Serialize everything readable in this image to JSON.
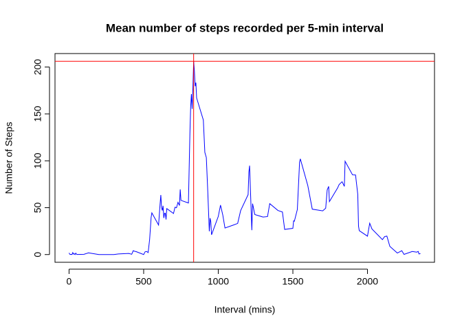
{
  "chart_data": {
    "type": "line",
    "title": "Mean number of steps recorded per 5-min interval",
    "x_label": "Interval (mins)",
    "y_label": "Number of Steps",
    "x": [
      0,
      5,
      10,
      15,
      20,
      25,
      30,
      35,
      40,
      45,
      50,
      55,
      100,
      130,
      200,
      230,
      300,
      330,
      400,
      420,
      430,
      440,
      450,
      500,
      505,
      510,
      520,
      530,
      540,
      550,
      555,
      600,
      610,
      615,
      620,
      625,
      630,
      635,
      640,
      645,
      650,
      655,
      700,
      710,
      720,
      730,
      740,
      745,
      750,
      800,
      810,
      815,
      820,
      825,
      830,
      835,
      840,
      845,
      850,
      855,
      900,
      910,
      920,
      930,
      940,
      945,
      950,
      955,
      1000,
      1015,
      1030,
      1045,
      1100,
      1130,
      1150,
      1200,
      1205,
      1210,
      1225,
      1230,
      1245,
      1300,
      1330,
      1345,
      1400,
      1430,
      1445,
      1500,
      1505,
      1510,
      1530,
      1545,
      1550,
      1600,
      1630,
      1700,
      1720,
      1730,
      1740,
      1745,
      1800,
      1810,
      1830,
      1845,
      1850,
      1900,
      1920,
      1935,
      1940,
      1945,
      2000,
      2015,
      2030,
      2100,
      2115,
      2130,
      2150,
      2200,
      2230,
      2245,
      2300,
      2330,
      2340,
      2345,
      2355
    ],
    "values": [
      1.7,
      0.3,
      0.1,
      0.2,
      0.1,
      2.1,
      0.5,
      0.9,
      0,
      1.5,
      0.3,
      0.1,
      0.3,
      1.8,
      0,
      0,
      0,
      0.6,
      1.2,
      0.3,
      4.1,
      3.5,
      3.1,
      0,
      1.6,
      3,
      3.3,
      2.1,
      16,
      39.5,
      44.5,
      31.5,
      53.8,
      63.5,
      50,
      47,
      52,
      39,
      44,
      44,
      37.4,
      49,
      43.8,
      50.5,
      49.9,
      55.7,
      52.3,
      69.5,
      57.8,
      55,
      129.4,
      157.5,
      171.2,
      155.4,
      177.3,
      206.2,
      195.9,
      179.6,
      183.4,
      167,
      143.5,
      109,
      103.5,
      66.2,
      24.8,
      38.8,
      35,
      21.1,
      40.6,
      52.7,
      42.4,
      28.3,
      31.4,
      33.2,
      46.9,
      63.9,
      87.6,
      94.8,
      26,
      54.3,
      42.7,
      40,
      40.5,
      54.3,
      47,
      45.4,
      26.8,
      28,
      36,
      35.5,
      48.1,
      98.7,
      102.1,
      73.6,
      48.4,
      46.6,
      49.4,
      68.9,
      72.7,
      56.5,
      71.1,
      74.7,
      77.7,
      72.7,
      99.5,
      85,
      84.9,
      64.1,
      30.2,
      25.5,
      19.6,
      33.4,
      27.3,
      15.9,
      19.2,
      19.7,
      8.7,
      1.6,
      4.1,
      0.2,
      3.3,
      2.6,
      3.3,
      0.6,
      1.1
    ],
    "color": "#0000ff",
    "xlim": [
      -94.2,
      2449.2
    ],
    "ylim": [
      -8.25,
      214.4
    ],
    "xticks": [
      0,
      500,
      1000,
      1500,
      2000
    ],
    "yticks": [
      0,
      50,
      100,
      150,
      200
    ],
    "vline": 835,
    "hline": 206.17,
    "ref_color": "#ff0000"
  }
}
